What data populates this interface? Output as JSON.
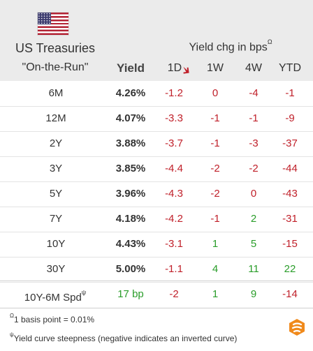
{
  "header": {
    "title_line1": "US Treasuries",
    "title_line2": "\"On-the-Run\"",
    "yield_label": "Yield",
    "change_label": "Yield chg in bps",
    "change_label_sup": "Ω",
    "columns": [
      "1D",
      "1W",
      "4W",
      "YTD"
    ],
    "sort_indicator_icon": "arrow-down-icon",
    "flag_icon": "us-flag-icon"
  },
  "rows": [
    {
      "label": "6M",
      "yield": "4.26%",
      "d1": "-1.2",
      "w1": "0",
      "w4": "-4",
      "ytd": "-1"
    },
    {
      "label": "12M",
      "yield": "4.07%",
      "d1": "-3.3",
      "w1": "-1",
      "w4": "-1",
      "ytd": "-9"
    },
    {
      "label": "2Y",
      "yield": "3.88%",
      "d1": "-3.7",
      "w1": "-1",
      "w4": "-3",
      "ytd": "-37"
    },
    {
      "label": "3Y",
      "yield": "3.85%",
      "d1": "-4.4",
      "w1": "-2",
      "w4": "-2",
      "ytd": "-44"
    },
    {
      "label": "5Y",
      "yield": "3.96%",
      "d1": "-4.3",
      "w1": "-2",
      "w4": "0",
      "ytd": "-43"
    },
    {
      "label": "7Y",
      "yield": "4.18%",
      "d1": "-4.2",
      "w1": "-1",
      "w4": "2",
      "ytd": "-31"
    },
    {
      "label": "10Y",
      "yield": "4.43%",
      "d1": "-3.1",
      "w1": "1",
      "w4": "5",
      "ytd": "-15"
    },
    {
      "label": "30Y",
      "yield": "5.00%",
      "d1": "-1.1",
      "w1": "4",
      "w4": "11",
      "ytd": "22"
    }
  ],
  "spread": {
    "label": "10Y-6M Spd",
    "label_sup": "ψ",
    "value": "17 bp",
    "d1": "-2",
    "w1": "1",
    "w4": "9",
    "ytd": "-14"
  },
  "footnotes": {
    "note1_sup": "Ω",
    "note1": "1 basis point = 0.01%",
    "note2_sup": "ψ",
    "note2": "Yield curve steepness (negative indicates an inverted curve)"
  },
  "colors": {
    "negative": "#c0202a",
    "positive": "#2a9d2a",
    "header_bg": "#ebebeb",
    "brand": "#f08a1c"
  },
  "brand_logo_icon": "brand-logo-icon"
}
